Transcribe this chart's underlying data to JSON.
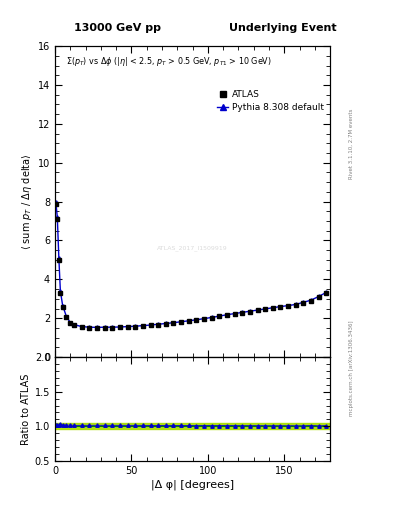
{
  "title_left": "13000 GeV pp",
  "title_right": "Underlying Event",
  "ylabel_main": "⟨ sum p_{T} / Δη delta⟩",
  "ylabel_ratio": "Ratio to ATLAS",
  "xlabel": "|Δ φ| [degrees]",
  "right_label_top": "Rivet 3.1.10, 2.7M events",
  "right_label_bottom": "mcplots.cern.ch [arXiv:1306.3436]",
  "watermark": "ATLAS_2017_I1509919",
  "ylim_main": [
    0,
    16
  ],
  "ylim_ratio": [
    0.5,
    2.0
  ],
  "xlim": [
    0,
    180
  ],
  "yticks_main": [
    0,
    2,
    4,
    6,
    8,
    10,
    12,
    14,
    16
  ],
  "yticks_ratio": [
    0.5,
    1.0,
    1.5,
    2.0
  ],
  "xticks": [
    0,
    50,
    100,
    150
  ],
  "legend_entries": [
    "ATLAS",
    "Pythia 8.308 default"
  ],
  "atlas_color": "black",
  "pythia_color": "#0000cc",
  "ratio_band_color": "#aadd00",
  "background_color": "white",
  "atlas_x": [
    0.5,
    1.5,
    2.5,
    3.5,
    5.0,
    7.5,
    10.0,
    12.5,
    17.5,
    22.5,
    27.5,
    32.5,
    37.5,
    42.5,
    47.5,
    52.5,
    57.5,
    62.5,
    67.5,
    72.5,
    77.5,
    82.5,
    87.5,
    92.5,
    97.5,
    102.5,
    107.5,
    112.5,
    117.5,
    122.5,
    127.5,
    132.5,
    137.5,
    142.5,
    147.5,
    152.5,
    157.5,
    162.5,
    167.5,
    172.5,
    177.5
  ],
  "atlas_y": [
    7.9,
    7.1,
    5.0,
    3.3,
    2.6,
    2.05,
    1.75,
    1.65,
    1.55,
    1.52,
    1.51,
    1.52,
    1.52,
    1.53,
    1.55,
    1.57,
    1.6,
    1.63,
    1.67,
    1.71,
    1.75,
    1.8,
    1.85,
    1.9,
    1.96,
    2.02,
    2.09,
    2.16,
    2.22,
    2.28,
    2.34,
    2.4,
    2.46,
    2.52,
    2.58,
    2.63,
    2.69,
    2.8,
    2.9,
    3.1,
    3.3
  ],
  "pythia_x": [
    0.5,
    1.5,
    2.5,
    3.5,
    5.0,
    7.5,
    10.0,
    12.5,
    17.5,
    22.5,
    27.5,
    32.5,
    37.5,
    42.5,
    47.5,
    52.5,
    57.5,
    62.5,
    67.5,
    72.5,
    77.5,
    82.5,
    87.5,
    92.5,
    97.5,
    102.5,
    107.5,
    112.5,
    117.5,
    122.5,
    127.5,
    132.5,
    137.5,
    142.5,
    147.5,
    152.5,
    157.5,
    162.5,
    167.5,
    172.5,
    177.5
  ],
  "pythia_y": [
    8.0,
    7.2,
    5.1,
    3.4,
    2.65,
    2.08,
    1.78,
    1.67,
    1.57,
    1.54,
    1.53,
    1.54,
    1.54,
    1.55,
    1.57,
    1.59,
    1.62,
    1.65,
    1.69,
    1.73,
    1.77,
    1.82,
    1.87,
    1.92,
    1.98,
    2.04,
    2.11,
    2.18,
    2.24,
    2.3,
    2.36,
    2.42,
    2.48,
    2.54,
    2.6,
    2.65,
    2.71,
    2.82,
    2.93,
    3.12,
    3.33
  ],
  "ratio_y_band_low": 0.96,
  "ratio_y_band_high": 1.04
}
